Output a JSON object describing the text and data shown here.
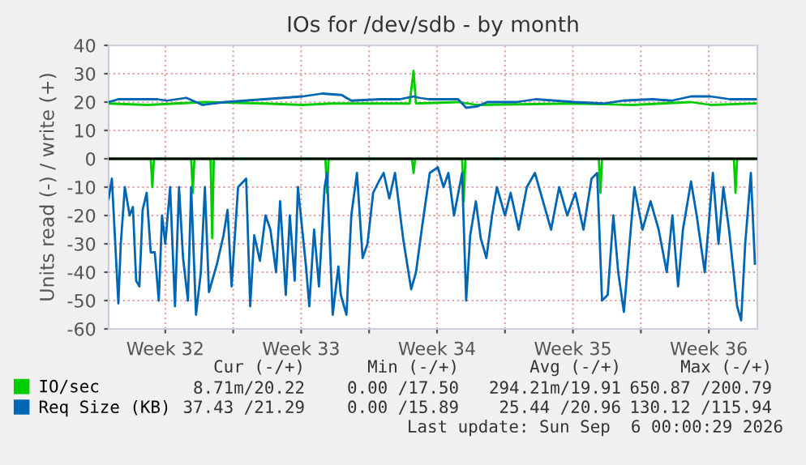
{
  "chart_data": {
    "type": "line",
    "title": "IOs for /dev/sdb - by month",
    "ylabel": "Units read (-) / write (+)",
    "xlim": [
      "2026-08-03T14:00",
      "2026-09-06T00:00"
    ],
    "ylim": [
      -60,
      40
    ],
    "xticks": [
      {
        "value": "2026-08-06T12:00",
        "label": "Week 32"
      },
      {
        "value": "2026-08-10T00:00",
        "label": null
      },
      {
        "value": "2026-08-13T12:00",
        "label": "Week 33"
      },
      {
        "value": "2026-08-17T00:00",
        "label": null
      },
      {
        "value": "2026-08-20T12:00",
        "label": "Week 34"
      },
      {
        "value": "2026-08-24T00:00",
        "label": null
      },
      {
        "value": "2026-08-27T12:00",
        "label": "Week 35"
      },
      {
        "value": "2026-08-31T00:00",
        "label": null
      },
      {
        "value": "2026-09-03T12:00",
        "label": "Week 36"
      }
    ],
    "yticks": [
      -60,
      -50,
      -40,
      -30,
      -20,
      -10,
      0,
      10,
      20,
      30,
      40
    ],
    "grid": true,
    "legend": "bottom left",
    "marker": "none",
    "line_style": "solid",
    "ref_lines": [
      {
        "axis": "y",
        "value": 0,
        "color": "#000000"
      }
    ],
    "series": [
      {
        "name": "IO/sec",
        "color": "#00cc00",
        "x": [
          "2026-08-03T14:00",
          "2026-08-05T14:00",
          "2026-08-08T14:00",
          "2026-08-11T14:00",
          "2026-08-13T14:00",
          "2026-08-15T02:00",
          "2026-08-19T02:00",
          "2026-08-19T07:00",
          "2026-08-19T10:00",
          "2026-08-21T14:00",
          "2026-08-22T14:00",
          "2026-08-27T14:00",
          "2026-08-30T14:00",
          "2026-09-02T14:00",
          "2026-09-03T14:00",
          "2026-09-05T22:00"
        ],
        "values": [
          19.5,
          19,
          20,
          19.5,
          19,
          19.5,
          19.5,
          31,
          19.5,
          20,
          19,
          19.5,
          19,
          20,
          19,
          19.5
        ]
      },
      {
        "color": "#00cc00",
        "x": [
          "2026-08-03T14:00",
          "2026-08-05T18:00",
          "2026-08-05T20:00",
          "2026-08-05T22:00",
          "2026-08-07T20:00",
          "2026-08-07T22:00",
          "2026-08-08T00:00",
          "2026-08-08T20:00",
          "2026-08-08T22:00",
          "2026-08-09T00:00",
          "2026-08-14T18:00",
          "2026-08-14T20:00",
          "2026-08-14T22:00",
          "2026-08-19T05:00",
          "2026-08-19T07:00",
          "2026-08-19T09:00",
          "2026-08-21T19:00",
          "2026-08-21T21:00",
          "2026-08-21T23:00",
          "2026-08-28T20:00",
          "2026-08-28T22:00",
          "2026-08-29T00:00",
          "2026-09-04T19:00",
          "2026-09-04T21:00",
          "2026-09-04T23:00",
          "2026-09-05T21:00"
        ],
        "values": [
          0,
          0,
          -10,
          0,
          0,
          -12,
          0,
          0,
          -28,
          0,
          0,
          -12,
          0,
          0,
          -5,
          0,
          0,
          -15,
          0,
          0,
          -12,
          0,
          0,
          -12,
          0,
          0
        ]
      },
      {
        "name": "Req Size (KB)",
        "color": "#0066b3",
        "x": [
          "2026-08-03T14:00",
          "2026-08-04T02:00",
          "2026-08-06T02:00",
          "2026-08-06T14:00",
          "2026-08-07T14:00",
          "2026-08-08T10:00",
          "2026-08-09T14:00",
          "2026-08-11T14:00",
          "2026-08-12T14:00",
          "2026-08-13T14:00",
          "2026-08-14T14:00",
          "2026-08-15T14:00",
          "2026-08-16T02:00",
          "2026-08-17T14:00",
          "2026-08-18T14:00",
          "2026-08-19T07:00",
          "2026-08-19T14:00",
          "2026-08-20T02:00",
          "2026-08-21T14:00",
          "2026-08-22T00:00",
          "2026-08-22T14:00",
          "2026-08-23T02:00",
          "2026-08-24T14:00",
          "2026-08-25T14:00",
          "2026-08-27T14:00",
          "2026-08-29T02:00",
          "2026-08-30T02:00",
          "2026-08-31T14:00",
          "2026-09-01T14:00",
          "2026-09-02T14:00",
          "2026-09-03T14:00",
          "2026-09-04T14:00",
          "2026-09-05T22:00"
        ],
        "values": [
          20,
          21,
          21,
          20.5,
          21.5,
          19,
          20,
          21,
          21.5,
          22,
          23,
          22.5,
          20.5,
          21,
          21,
          22,
          21.5,
          21,
          21,
          18,
          18.5,
          20,
          20,
          21,
          20,
          19.5,
          20.5,
          21,
          20.5,
          22,
          22,
          21,
          21
        ]
      },
      {
        "color": "#0066b3",
        "x": [
          "2026-08-03T14:00",
          "2026-08-03T18:00",
          "2026-08-04T02:00",
          "2026-08-04T05:00",
          "2026-08-04T10:00",
          "2026-08-04T16:00",
          "2026-08-04T20:00",
          "2026-08-05T00:00",
          "2026-08-05T04:00",
          "2026-08-05T08:00",
          "2026-08-05T13:00",
          "2026-08-05T18:00",
          "2026-08-05T23:00",
          "2026-08-06T04:00",
          "2026-08-06T08:00",
          "2026-08-06T12:00",
          "2026-08-06T18:00",
          "2026-08-07T00:00",
          "2026-08-07T05:00",
          "2026-08-07T10:00",
          "2026-08-07T16:00",
          "2026-08-07T20:00",
          "2026-08-08T02:00",
          "2026-08-08T08:00",
          "2026-08-08T13:00",
          "2026-08-08T18:00",
          "2026-08-08T22:00",
          "2026-08-09T04:00",
          "2026-08-09T12:00",
          "2026-08-09T17:00",
          "2026-08-09T22:00",
          "2026-08-10T06:00",
          "2026-08-10T16:00",
          "2026-08-10T21:00",
          "2026-08-11T02:00",
          "2026-08-11T09:00",
          "2026-08-11T16:00",
          "2026-08-11T22:00",
          "2026-08-12T05:00",
          "2026-08-12T10:00",
          "2026-08-12T17:00",
          "2026-08-12T22:00",
          "2026-08-13T04:00",
          "2026-08-13T08:00",
          "2026-08-13T18:00",
          "2026-08-13T22:00",
          "2026-08-14T04:00",
          "2026-08-14T10:00",
          "2026-08-14T17:00",
          "2026-08-14T20:00",
          "2026-08-15T03:00",
          "2026-08-15T10:00",
          "2026-08-15T13:00",
          "2026-08-15T20:00",
          "2026-08-16T02:00",
          "2026-08-16T09:00",
          "2026-08-16T16:00",
          "2026-08-16T22:00",
          "2026-08-17T05:00",
          "2026-08-17T12:00",
          "2026-08-17T18:00",
          "2026-08-18T01:00",
          "2026-08-18T08:00",
          "2026-08-18T18:00",
          "2026-08-19T04:00",
          "2026-08-19T10:00",
          "2026-08-19T17:00",
          "2026-08-20T03:00",
          "2026-08-20T13:00",
          "2026-08-20T20:00",
          "2026-08-21T02:00",
          "2026-08-21T09:00",
          "2026-08-21T19:00",
          "2026-08-22T00:00",
          "2026-08-22T05:00",
          "2026-08-22T12:00",
          "2026-08-22T18:00",
          "2026-08-23T01:00",
          "2026-08-23T08:00",
          "2026-08-23T14:00",
          "2026-08-24T00:00",
          "2026-08-24T07:00",
          "2026-08-24T17:00",
          "2026-08-25T03:00",
          "2026-08-25T13:00",
          "2026-08-25T23:00",
          "2026-08-26T09:00",
          "2026-08-26T19:00",
          "2026-08-27T05:00",
          "2026-08-27T15:00",
          "2026-08-28T01:00",
          "2026-08-28T11:00",
          "2026-08-28T18:00",
          "2026-08-29T00:00",
          "2026-08-29T07:00",
          "2026-08-29T14:00",
          "2026-08-29T20:00",
          "2026-08-30T03:00",
          "2026-08-30T10:00",
          "2026-08-30T16:00",
          "2026-08-31T02:00",
          "2026-08-31T12:00",
          "2026-08-31T22:00",
          "2026-09-01T08:00",
          "2026-09-01T15:00",
          "2026-09-01T22:00",
          "2026-09-02T04:00",
          "2026-09-02T14:00",
          "2026-09-02T21:00",
          "2026-09-03T07:00",
          "2026-09-03T17:00",
          "2026-09-04T00:00",
          "2026-09-04T06:00",
          "2026-09-04T13:00",
          "2026-09-04T23:00",
          "2026-09-05T04:00",
          "2026-09-05T09:00",
          "2026-09-05T16:00",
          "2026-09-05T21:00"
        ],
        "values": [
          -14,
          -7,
          -51,
          -30,
          -10,
          -20,
          -17,
          -43,
          -45,
          -18,
          -12,
          -33,
          -33,
          -50,
          -20,
          -30,
          -10,
          -52,
          -10,
          -35,
          -50,
          -10,
          -55,
          -40,
          -10,
          -47,
          -43,
          -37,
          -27,
          -18,
          -45,
          -10,
          -7,
          -52,
          -27,
          -36,
          -20,
          -25,
          -40,
          -15,
          -48,
          -20,
          -43,
          -10,
          -38,
          -52,
          -25,
          -45,
          -10,
          -5,
          -55,
          -38,
          -48,
          -55,
          -20,
          -5,
          -35,
          -30,
          -12,
          -8,
          -5,
          -14,
          -5,
          -28,
          -46,
          -40,
          -25,
          -5,
          -3,
          -10,
          -5,
          -20,
          -5,
          -50,
          -27,
          -15,
          -28,
          -35,
          -20,
          -10,
          -20,
          -12,
          -25,
          -10,
          -5,
          -15,
          -25,
          -10,
          -20,
          -12,
          -25,
          -7,
          -5,
          -50,
          -48,
          -20,
          -40,
          -54,
          -30,
          -10,
          -25,
          -15,
          -25,
          -40,
          -20,
          -45,
          -25,
          -8,
          -20,
          -40,
          -5,
          -30,
          -10,
          -25,
          -52,
          -57,
          -30,
          -5,
          -37
        ]
      }
    ],
    "annotations": [
      "Cur (-/+)",
      "Min (-/+)",
      "Avg (-/+)",
      "Max (-/+)",
      "8.71m/20.22",
      "0.00 /17.50",
      "294.21m/19.91",
      "650.87 /200.79",
      "37.43 /21.29",
      "0.00 /15.89",
      "25.44 /20.96",
      "130.12 /115.94",
      "Last update: Sun Sep  6 00:00:29 2026"
    ]
  }
}
